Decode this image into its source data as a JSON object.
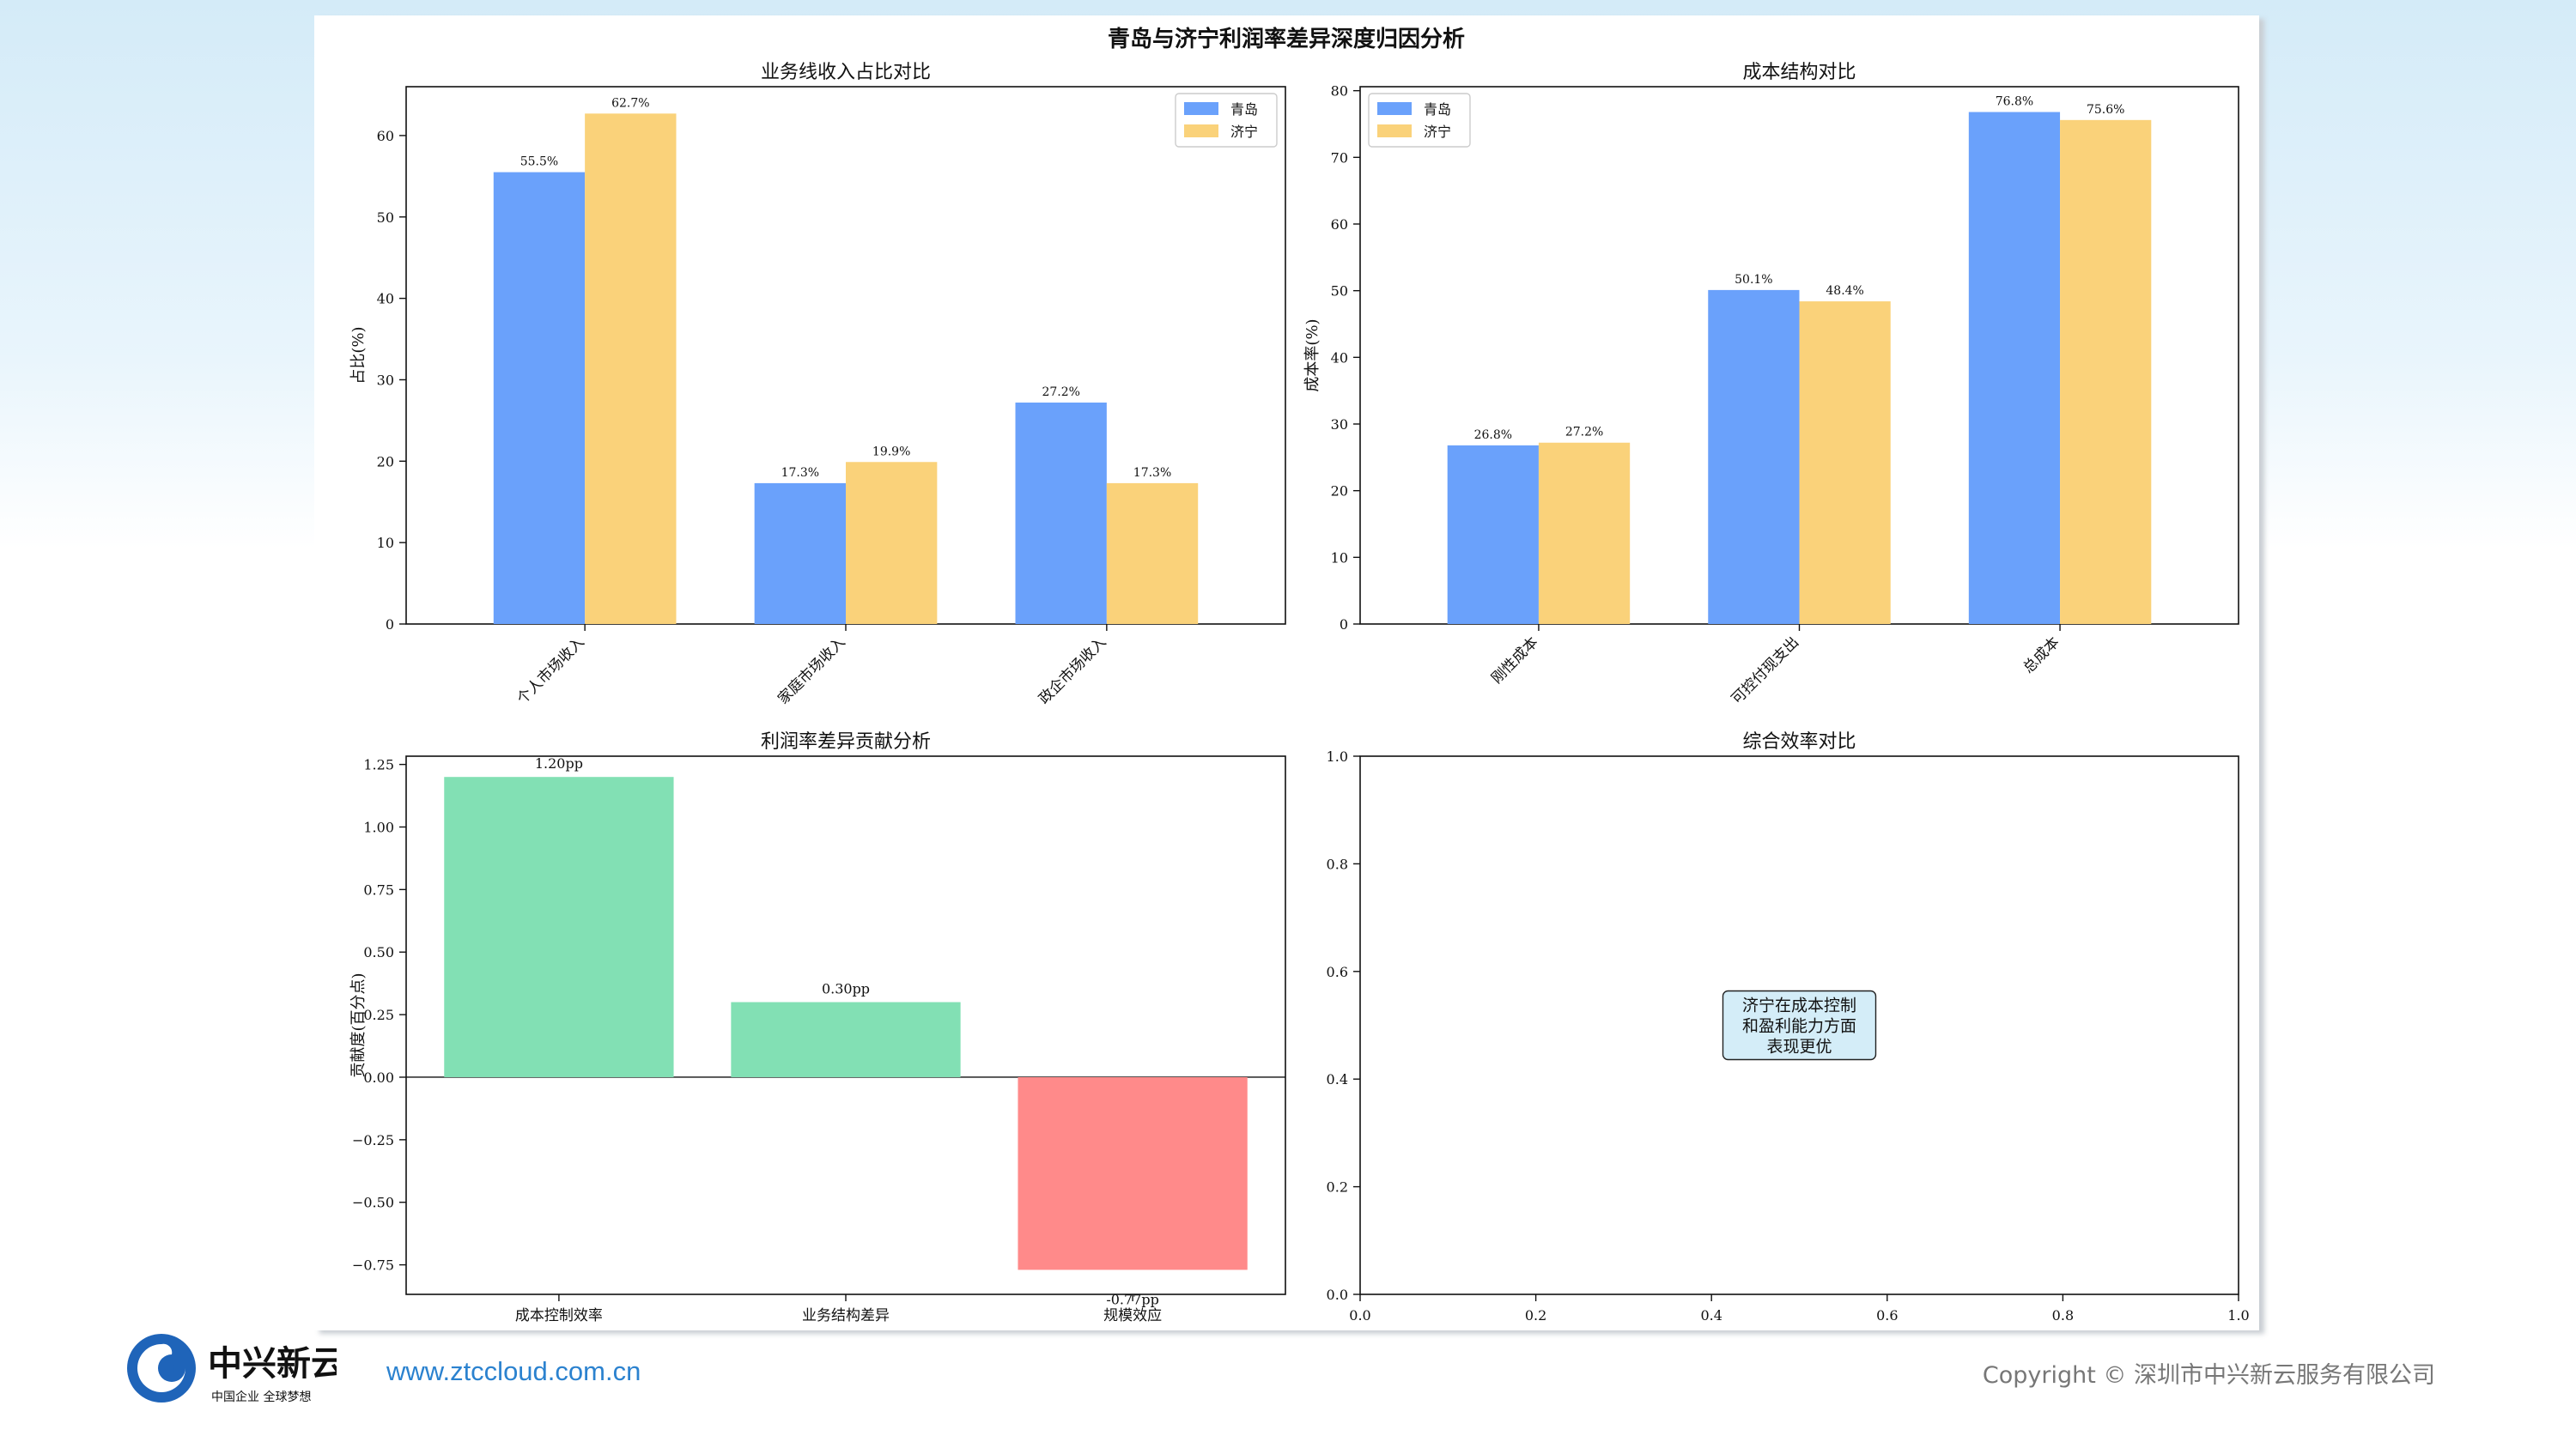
{
  "figure_title": "青岛与济宁利润率差异深度归因分析",
  "brand": {
    "logo_text": "中兴新云",
    "logo_slogan": "中国企业 全球梦想",
    "url": "www.ztccloud.com.cn",
    "copyright": "Copyright © 深圳市中兴新云服务有限公司",
    "primary_color": "#1f64b9"
  },
  "chart_data": [
    {
      "id": "revenue",
      "type": "bar",
      "title": "业务线收入占比对比",
      "ylabel": "占比(%)",
      "xlabel": "",
      "ylim": [
        0,
        66
      ],
      "yticks": [
        "0",
        "10",
        "20",
        "30",
        "40",
        "50",
        "60"
      ],
      "ytick_values": [
        0,
        10,
        20,
        30,
        40,
        50,
        60
      ],
      "categories": [
        "个人市场收入",
        "家庭市场收入",
        "政企市场收入"
      ],
      "series": [
        {
          "name": "青岛",
          "color": "#6aa1fb",
          "values": [
            55.5,
            17.3,
            27.2
          ],
          "labels": [
            "55.5%",
            "17.3%",
            "27.2%"
          ]
        },
        {
          "name": "济宁",
          "color": "#fad27a",
          "values": [
            62.7,
            19.9,
            17.3
          ],
          "labels": [
            "62.7%",
            "19.9%",
            "17.3%"
          ]
        }
      ],
      "legend": "top-right",
      "grid": false
    },
    {
      "id": "cost",
      "type": "bar",
      "title": "成本结构对比",
      "ylabel": "成本率(%)",
      "xlabel": "",
      "ylim": [
        0,
        80.6
      ],
      "yticks": [
        "0",
        "10",
        "20",
        "30",
        "40",
        "50",
        "60",
        "70",
        "80"
      ],
      "ytick_values": [
        0,
        10,
        20,
        30,
        40,
        50,
        60,
        70,
        80
      ],
      "categories": [
        "刚性成本",
        "可控付现支出",
        "总成本"
      ],
      "series": [
        {
          "name": "青岛",
          "color": "#6aa1fb",
          "values": [
            26.8,
            50.1,
            76.8
          ],
          "labels": [
            "26.8%",
            "50.1%",
            "76.8%"
          ]
        },
        {
          "name": "济宁",
          "color": "#fad27a",
          "values": [
            27.2,
            48.4,
            75.6
          ],
          "labels": [
            "27.2%",
            "48.4%",
            "75.6%"
          ]
        }
      ],
      "legend": "top-left",
      "grid": false
    },
    {
      "id": "contribution",
      "type": "bar",
      "title": "利润率差异贡献分析",
      "ylabel": "贡献度(百分点)",
      "xlabel": "",
      "ylim": [
        -0.868,
        1.283
      ],
      "yticks": [
        "−0.75",
        "−0.50",
        "−0.25",
        "0.00",
        "0.25",
        "0.50",
        "0.75",
        "1.00",
        "1.25"
      ],
      "ytick_values": [
        -0.75,
        -0.5,
        -0.25,
        0,
        0.25,
        0.5,
        0.75,
        1.0,
        1.25
      ],
      "categories": [
        "成本控制效率",
        "业务结构差异",
        "规模效应"
      ],
      "values": [
        1.2,
        0.3,
        -0.77
      ],
      "labels": [
        "1.20pp",
        "0.30pp",
        "-0.77pp"
      ],
      "positive_color": "#82e0b4",
      "negative_color": "#ff8a8a",
      "grid": false
    },
    {
      "id": "efficiency",
      "type": "scatter",
      "title": "综合效率对比",
      "xlim": [
        0,
        1
      ],
      "ylim": [
        0,
        1
      ],
      "xticks": [
        "0.0",
        "0.2",
        "0.4",
        "0.6",
        "0.8",
        "1.0"
      ],
      "yticks": [
        "0.0",
        "0.2",
        "0.4",
        "0.6",
        "0.8",
        "1.0"
      ],
      "tick_values": [
        0,
        0.2,
        0.4,
        0.6,
        0.8,
        1.0
      ],
      "annotation": {
        "x": 0.5,
        "y": 0.5,
        "lines": [
          "济宁在成本控制",
          "和盈利能力方面",
          "表现更优"
        ],
        "box_color": "#d4edf8"
      },
      "grid": false
    }
  ]
}
